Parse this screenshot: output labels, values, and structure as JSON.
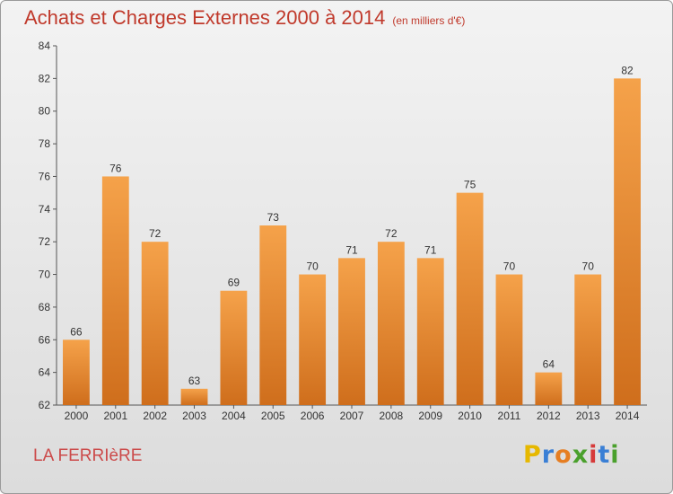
{
  "chart_data": {
    "type": "bar",
    "title": "Achats et Charges Externes 2000 à 2014",
    "subtitle": "(en milliers d'€)",
    "categories": [
      "2000",
      "2001",
      "2002",
      "2003",
      "2004",
      "2005",
      "2006",
      "2007",
      "2008",
      "2009",
      "2010",
      "2011",
      "2012",
      "2013",
      "2014"
    ],
    "values": [
      66,
      76,
      72,
      63,
      69,
      73,
      70,
      71,
      72,
      71,
      75,
      70,
      64,
      70,
      82
    ],
    "ylim": [
      62,
      84
    ],
    "yticks": [
      62,
      64,
      66,
      68,
      70,
      72,
      74,
      76,
      78,
      80,
      82,
      84
    ],
    "grid": false,
    "bar_color": "#f0963c",
    "bar_color_dark": "#cf6e1c"
  },
  "footer": {
    "location": "LA FERRIèRE"
  },
  "logo": {
    "letters": [
      "P",
      "r",
      "o",
      "x",
      "i",
      "t",
      "i"
    ],
    "colors": [
      "#e6b800",
      "#3a7fd5",
      "#e67e22",
      "#4aa02c",
      "#d63a3a",
      "#3a7fd5",
      "#4aa02c"
    ]
  }
}
